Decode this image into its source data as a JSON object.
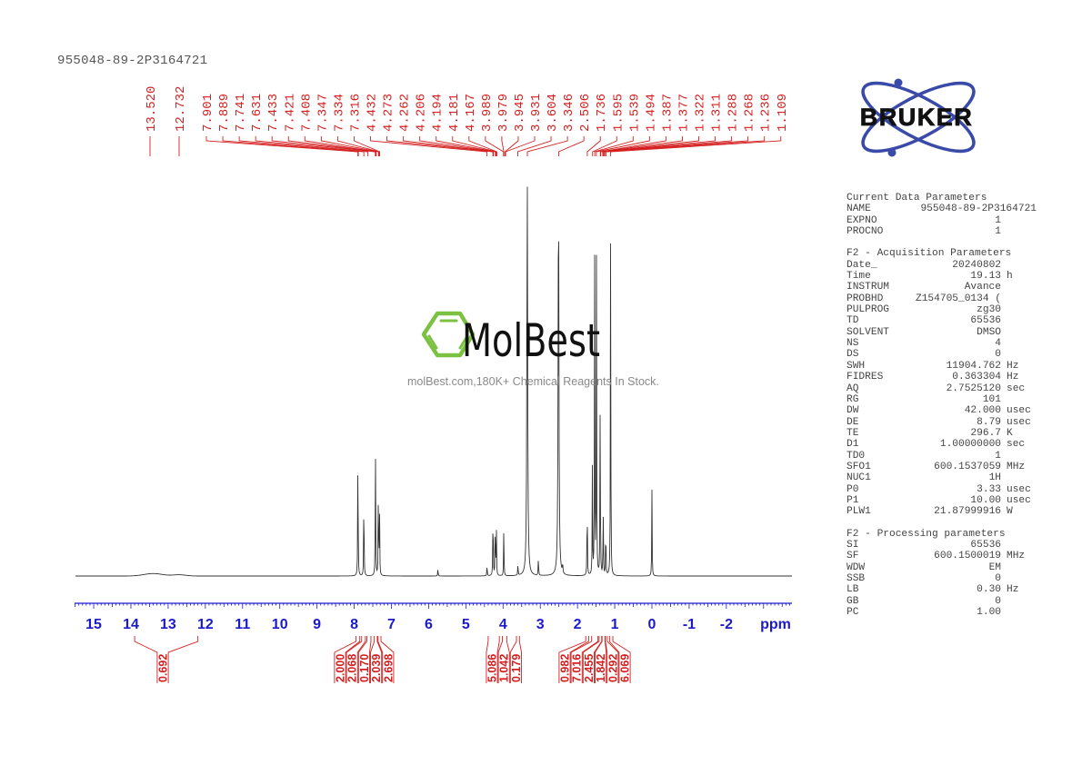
{
  "header": {
    "sample_id": "955048-89-2P3164721"
  },
  "logos": {
    "bruker": "BRUKER",
    "molbest": "MolBest",
    "molbest_tagline": "molBest.com,180K+ Chemical Reagents In Stock."
  },
  "chart_data": {
    "type": "line",
    "title": "1H NMR spectrum 955048-89-2P3164721",
    "xlabel": "ppm",
    "ylabel": "",
    "xlim": [
      15.5,
      -3.8
    ],
    "x_ticks": [
      "15",
      "14",
      "13",
      "12",
      "11",
      "10",
      "9",
      "8",
      "7",
      "6",
      "5",
      "4",
      "3",
      "2",
      "1",
      "0",
      "-1",
      "-2"
    ],
    "x_tick_label_ppm": [
      15,
      14,
      13,
      12,
      11,
      10,
      9,
      8,
      7,
      6,
      5,
      4,
      3,
      2,
      1,
      0,
      -1,
      -2
    ],
    "grid": false,
    "peak_labels": [
      "13.520",
      "12.732",
      "7.901",
      "7.889",
      "7.741",
      "7.631",
      "7.433",
      "7.421",
      "7.408",
      "7.347",
      "7.334",
      "7.316",
      "4.432",
      "4.273",
      "4.262",
      "4.206",
      "4.194",
      "4.181",
      "4.167",
      "3.989",
      "3.979",
      "3.945",
      "3.931",
      "3.604",
      "3.346",
      "2.506",
      "1.736",
      "1.595",
      "1.539",
      "1.494",
      "1.387",
      "1.377",
      "1.322",
      "1.311",
      "1.288",
      "1.268",
      "1.236",
      "1.109"
    ],
    "peaks": [
      {
        "ppm": 7.9,
        "height": 0.34
      },
      {
        "ppm": 7.74,
        "height": 0.23
      },
      {
        "ppm": 7.43,
        "height": 0.34
      },
      {
        "ppm": 7.35,
        "height": 0.24
      },
      {
        "ppm": 7.32,
        "height": 0.17
      },
      {
        "ppm": 5.75,
        "height": 0.02
      },
      {
        "ppm": 4.43,
        "height": 0.03
      },
      {
        "ppm": 4.27,
        "height": 0.19
      },
      {
        "ppm": 4.21,
        "height": 0.14
      },
      {
        "ppm": 4.18,
        "height": 0.12
      },
      {
        "ppm": 3.98,
        "height": 0.12
      },
      {
        "ppm": 3.6,
        "height": 0.03
      },
      {
        "ppm": 3.35,
        "height": 1.0
      },
      {
        "ppm": 3.05,
        "height": 0.05
      },
      {
        "ppm": 2.51,
        "height": 1.0
      },
      {
        "ppm": 2.4,
        "height": 0.03
      },
      {
        "ppm": 1.74,
        "height": 0.21
      },
      {
        "ppm": 1.6,
        "height": 0.26
      },
      {
        "ppm": 1.54,
        "height": 0.78
      },
      {
        "ppm": 1.49,
        "height": 0.77
      },
      {
        "ppm": 1.39,
        "height": 0.46
      },
      {
        "ppm": 1.31,
        "height": 0.17
      },
      {
        "ppm": 1.24,
        "height": 0.14
      },
      {
        "ppm": 1.11,
        "height": 0.87
      },
      {
        "ppm": 0.0,
        "height": 0.21
      }
    ],
    "integrals": [
      {
        "range": [
          13.9,
          12.2
        ],
        "value": "0.692"
      },
      {
        "range": [
          7.95,
          7.85
        ],
        "value": "2.000"
      },
      {
        "range": [
          7.8,
          7.7
        ],
        "value": "2.068"
      },
      {
        "range": [
          7.66,
          7.55
        ],
        "value": "0.170"
      },
      {
        "range": [
          7.46,
          7.38
        ],
        "value": "2.039"
      },
      {
        "range": [
          7.36,
          7.28
        ],
        "value": "2.698"
      },
      {
        "range": [
          4.4,
          4.1
        ],
        "value": "5.086"
      },
      {
        "range": [
          4.02,
          3.9
        ],
        "value": "1.042"
      },
      {
        "range": [
          3.64,
          3.56
        ],
        "value": "0.179"
      },
      {
        "range": [
          1.78,
          1.7
        ],
        "value": "0.982"
      },
      {
        "range": [
          1.62,
          1.45
        ],
        "value": "7.016"
      },
      {
        "range": [
          1.42,
          1.35
        ],
        "value": "2.455"
      },
      {
        "range": [
          1.34,
          1.26
        ],
        "value": "1.842"
      },
      {
        "range": [
          1.25,
          1.2
        ],
        "value": "0.292"
      },
      {
        "range": [
          1.14,
          1.05
        ],
        "value": "6.069"
      }
    ]
  },
  "parameters": {
    "current": {
      "title": "Current Data Parameters",
      "rows": [
        {
          "key": "NAME",
          "value": "955048-89-2P3164721",
          "unit": ""
        },
        {
          "key": "EXPNO",
          "value": "1",
          "unit": ""
        },
        {
          "key": "PROCNO",
          "value": "1",
          "unit": ""
        }
      ]
    },
    "acquisition": {
      "title": "F2 - Acquisition Parameters",
      "rows": [
        {
          "key": "Date_",
          "value": "20240802",
          "unit": ""
        },
        {
          "key": "Time",
          "value": "19.13",
          "unit": "h"
        },
        {
          "key": "INSTRUM",
          "value": "Avance",
          "unit": ""
        },
        {
          "key": "PROBHD",
          "value": "Z154705_0134 (",
          "unit": ""
        },
        {
          "key": "PULPROG",
          "value": "zg30",
          "unit": ""
        },
        {
          "key": "TD",
          "value": "65536",
          "unit": ""
        },
        {
          "key": "SOLVENT",
          "value": "DMSO",
          "unit": ""
        },
        {
          "key": "NS",
          "value": "4",
          "unit": ""
        },
        {
          "key": "DS",
          "value": "0",
          "unit": ""
        },
        {
          "key": "SWH",
          "value": "11904.762",
          "unit": "Hz"
        },
        {
          "key": "FIDRES",
          "value": "0.363304",
          "unit": "Hz"
        },
        {
          "key": "AQ",
          "value": "2.7525120",
          "unit": "sec"
        },
        {
          "key": "RG",
          "value": "101",
          "unit": ""
        },
        {
          "key": "DW",
          "value": "42.000",
          "unit": "usec"
        },
        {
          "key": "DE",
          "value": "8.79",
          "unit": "usec"
        },
        {
          "key": "TE",
          "value": "296.7",
          "unit": "K"
        },
        {
          "key": "D1",
          "value": "1.00000000",
          "unit": "sec"
        },
        {
          "key": "TD0",
          "value": "1",
          "unit": ""
        },
        {
          "key": "SFO1",
          "value": "600.1537059",
          "unit": "MHz"
        },
        {
          "key": "NUC1",
          "value": "1H",
          "unit": ""
        },
        {
          "key": "P0",
          "value": "3.33",
          "unit": "usec"
        },
        {
          "key": "P1",
          "value": "10.00",
          "unit": "usec"
        },
        {
          "key": "PLW1",
          "value": "21.87999916",
          "unit": "W"
        }
      ]
    },
    "processing": {
      "title": "F2 - Processing parameters",
      "rows": [
        {
          "key": "SI",
          "value": "65536",
          "unit": ""
        },
        {
          "key": "SF",
          "value": "600.1500019",
          "unit": "MHz"
        },
        {
          "key": "WDW",
          "value": "EM",
          "unit": ""
        },
        {
          "key": "SSB",
          "value": "0",
          "unit": ""
        },
        {
          "key": "LB",
          "value": "0.30",
          "unit": "Hz"
        },
        {
          "key": "GB",
          "value": "0",
          "unit": ""
        },
        {
          "key": "PC",
          "value": "1.00",
          "unit": ""
        }
      ]
    }
  },
  "colors": {
    "axis": "#1a1acc",
    "annotation": "#d42020",
    "trace": "#333333",
    "bruker_blue": "#3a4aa8",
    "molbest_green": "#7cc242"
  }
}
